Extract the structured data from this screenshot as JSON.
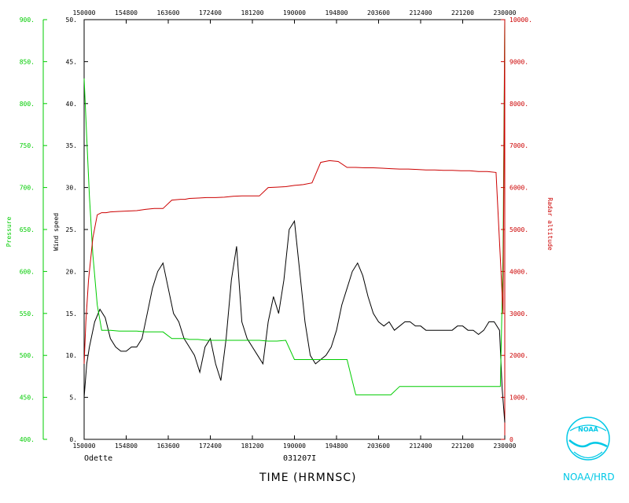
{
  "footer": {
    "storm_name": "Odette",
    "flight_id": "031207I",
    "time_axis_title": "TIME (HRMNSC)",
    "agency": "NOAA/HRD",
    "logo_text": "NOAA"
  },
  "chart_data": {
    "type": "line",
    "title": "",
    "xlabel": "TIME (HRMNSC)",
    "x_ticks": [
      "150000",
      "154800",
      "163600",
      "172400",
      "181200",
      "190000",
      "194800",
      "203600",
      "212400",
      "221200",
      "230000"
    ],
    "xlim": [
      "15:00:00",
      "23:00:00"
    ],
    "grid": false,
    "axes": {
      "wind": {
        "label": "Wind speed",
        "ylim": [
          0,
          50
        ],
        "ticks": [
          "0.",
          "5.",
          "10.",
          "15.",
          "20.",
          "25.",
          "30.",
          "35.",
          "40.",
          "45.",
          "50."
        ],
        "color": "#000000"
      },
      "pressure": {
        "label": "Pressure",
        "ylim": [
          400,
          900
        ],
        "ticks": [
          "400.",
          "450.",
          "500.",
          "550.",
          "600.",
          "650.",
          "700.",
          "750.",
          "800.",
          "850.",
          "900."
        ],
        "color": "#00cc00"
      },
      "altitude": {
        "label": "Radar altitude",
        "ylim": [
          0,
          10000
        ],
        "ticks": [
          "0",
          "1000.",
          "2000.",
          "3000.",
          "4000.",
          "5000.",
          "6000.",
          "7000.",
          "8000.",
          "9000.",
          "10000."
        ],
        "color": "#cc0000"
      }
    },
    "series": [
      {
        "id": "wind",
        "color": "#000000",
        "x": [
          "15:00",
          "15:03",
          "15:06",
          "15:12",
          "15:18",
          "15:24",
          "15:30",
          "15:36",
          "15:42",
          "15:48",
          "15:54",
          "16:00",
          "16:06",
          "16:12",
          "16:18",
          "16:24",
          "16:30",
          "16:36",
          "16:42",
          "16:48",
          "16:54",
          "17:00",
          "17:06",
          "17:12",
          "17:18",
          "17:24",
          "17:30",
          "17:36",
          "17:42",
          "17:48",
          "17:54",
          "18:00",
          "18:06",
          "18:12",
          "18:18",
          "18:24",
          "18:30",
          "18:36",
          "18:42",
          "18:48",
          "18:54",
          "19:00",
          "19:06",
          "19:12",
          "19:18",
          "19:24",
          "19:30",
          "19:36",
          "19:42",
          "19:48",
          "19:54",
          "20:00",
          "20:06",
          "20:12",
          "20:18",
          "20:24",
          "20:30",
          "20:36",
          "20:42",
          "20:48",
          "20:54",
          "21:00",
          "21:06",
          "21:12",
          "21:18",
          "21:24",
          "21:30",
          "21:36",
          "21:42",
          "21:48",
          "21:54",
          "22:00",
          "22:06",
          "22:12",
          "22:18",
          "22:24",
          "22:30",
          "22:36",
          "22:42",
          "22:48",
          "22:54",
          "22:57",
          "23:00"
        ],
        "values": [
          5,
          9,
          11,
          14,
          15.5,
          14.5,
          12,
          11,
          10.5,
          10.5,
          11,
          11,
          12,
          15,
          18,
          20,
          21,
          18,
          15,
          14,
          12,
          11,
          10,
          8,
          11,
          12,
          9,
          7,
          12,
          19,
          23,
          14,
          12,
          11,
          10,
          9,
          14,
          17,
          15,
          19,
          25,
          26,
          20,
          14,
          10,
          9,
          9.5,
          10,
          11,
          13,
          16,
          18,
          20,
          21,
          19.5,
          17,
          15,
          14,
          13.5,
          14,
          13,
          13.5,
          14,
          14,
          13.5,
          13.5,
          13,
          13,
          13,
          13,
          13,
          13,
          13.5,
          13.5,
          13,
          13,
          12.5,
          13,
          14,
          14,
          13,
          6,
          2
        ]
      },
      {
        "id": "pressure",
        "color": "#00cc00",
        "x": [
          "15:00",
          "15:03",
          "15:06",
          "15:10",
          "15:15",
          "15:20",
          "15:30",
          "15:40",
          "15:50",
          "16:00",
          "16:10",
          "16:20",
          "16:30",
          "16:40",
          "16:50",
          "16:55",
          "17:00",
          "17:10",
          "17:20",
          "17:30",
          "17:40",
          "17:50",
          "18:00",
          "18:10",
          "18:20",
          "18:30",
          "18:40",
          "18:50",
          "19:00",
          "19:10",
          "19:20",
          "19:30",
          "19:40",
          "19:50",
          "20:00",
          "20:10",
          "20:20",
          "20:30",
          "20:40",
          "20:50",
          "21:00",
          "21:10",
          "21:20",
          "21:30",
          "21:40",
          "21:50",
          "22:00",
          "22:10",
          "22:20",
          "22:30",
          "22:40",
          "22:50",
          "22:55",
          "22:58",
          "23:00"
        ],
        "values": [
          830,
          760,
          690,
          620,
          560,
          530,
          530,
          529,
          529,
          529,
          528,
          528,
          528,
          520,
          520,
          520,
          519,
          519,
          518,
          518,
          518,
          518,
          518,
          518,
          518,
          517,
          517,
          518,
          495,
          495,
          495,
          495,
          495,
          495,
          495,
          453,
          453,
          453,
          453,
          453,
          463,
          463,
          463,
          463,
          463,
          463,
          463,
          463,
          463,
          463,
          463,
          463,
          463,
          620,
          900
        ]
      },
      {
        "id": "altitude",
        "color": "#cc0000",
        "x": [
          "15:00",
          "15:02",
          "15:05",
          "15:10",
          "15:15",
          "15:20",
          "15:25",
          "15:30",
          "15:40",
          "15:50",
          "16:00",
          "16:10",
          "16:20",
          "16:30",
          "16:40",
          "16:50",
          "16:55",
          "17:00",
          "17:10",
          "17:20",
          "17:30",
          "17:40",
          "17:50",
          "18:00",
          "18:10",
          "18:20",
          "18:30",
          "18:40",
          "18:50",
          "19:00",
          "19:10",
          "19:20",
          "19:30",
          "19:40",
          "19:50",
          "20:00",
          "20:10",
          "20:20",
          "20:30",
          "20:40",
          "20:50",
          "21:00",
          "21:10",
          "21:20",
          "21:30",
          "21:40",
          "21:50",
          "22:00",
          "22:10",
          "22:20",
          "22:30",
          "22:40",
          "22:50",
          "22:55",
          "22:58",
          "23:00"
        ],
        "values": [
          1800,
          2800,
          3800,
          4800,
          5350,
          5400,
          5400,
          5420,
          5430,
          5440,
          5450,
          5480,
          5500,
          5500,
          5700,
          5720,
          5720,
          5740,
          5750,
          5760,
          5760,
          5770,
          5790,
          5800,
          5800,
          5800,
          6000,
          6010,
          6020,
          6050,
          6070,
          6110,
          6600,
          6640,
          6620,
          6480,
          6480,
          6470,
          6470,
          6460,
          6450,
          6440,
          6440,
          6430,
          6420,
          6420,
          6410,
          6410,
          6400,
          6400,
          6380,
          6380,
          6360,
          4300,
          3000,
          10000
        ]
      }
    ]
  }
}
